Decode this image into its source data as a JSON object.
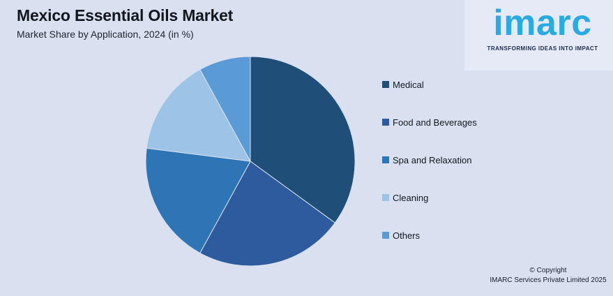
{
  "header": {
    "title": "Mexico Essential Oils Market",
    "subtitle": "Market Share by Application, 2024 (in %)"
  },
  "logo": {
    "wordmark": "imarc",
    "tagline": "TRANSFORMING IDEAS INTO IMPACT",
    "wordmark_color": "#29AAE2",
    "tagline_color": "#1C2B4B"
  },
  "chart_data": {
    "type": "pie",
    "title": "Mexico Essential Oils Market",
    "subtitle": "Market Share by Application, 2024 (in %)",
    "unit": "%",
    "categories": [
      "Medical",
      "Food and Beverages",
      "Spa and Relaxation",
      "Cleaning",
      "Others"
    ],
    "values": [
      35,
      23,
      19,
      15,
      8
    ],
    "colors": [
      "#1F4E79",
      "#2E5B9E",
      "#2E75B6",
      "#9DC3E6",
      "#5B9BD5"
    ],
    "start_angle_deg": 0,
    "direction": "clockwise",
    "legend_position": "right",
    "data_labels": false,
    "background_color": "#D9E1F1",
    "slice_separator_color": "#D9E1F1"
  },
  "footer": {
    "line1": "© Copyright",
    "line2": "IMARC Services Private Limited 2025"
  }
}
